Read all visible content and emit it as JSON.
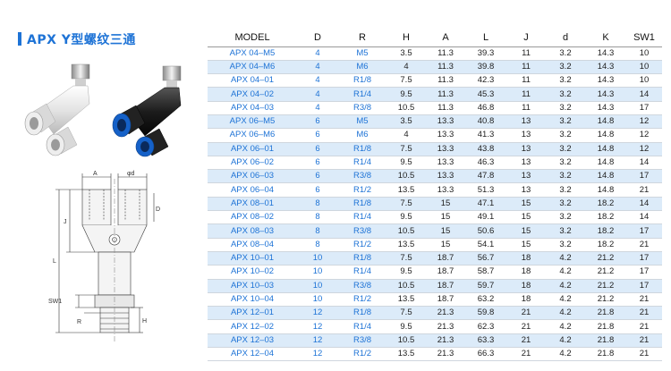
{
  "header": {
    "title": "APX Y型螺纹三通"
  },
  "images": {
    "photo_icon": "fitting-photo-icon",
    "drawing_icon": "dimension-drawing-icon",
    "drawing_labels": {
      "a": "A",
      "l": "L",
      "h": "H",
      "d": "φd",
      "j": "J",
      "sw": "SW1",
      "r": "R",
      "dd": "D"
    }
  },
  "colors": {
    "accent": "#1e73d6",
    "row_highlight": "#dcebf9",
    "fitting_white": "#e8e8e8",
    "fitting_black": "#1a1a1a",
    "collet_blue": "#1561c8"
  },
  "table": {
    "columns": [
      "MODEL",
      "D",
      "R",
      "H",
      "A",
      "L",
      "J",
      "d",
      "K",
      "SW1"
    ],
    "rows": [
      [
        "APX 04–M5",
        "4",
        "M5",
        "3.5",
        "11.3",
        "39.3",
        "11",
        "3.2",
        "14.3",
        "10"
      ],
      [
        "APX 04–M6",
        "4",
        "M6",
        "4",
        "11.3",
        "39.8",
        "11",
        "3.2",
        "14.3",
        "10"
      ],
      [
        "APX 04–01",
        "4",
        "R1/8",
        "7.5",
        "11.3",
        "42.3",
        "11",
        "3.2",
        "14.3",
        "10"
      ],
      [
        "APX 04–02",
        "4",
        "R1/4",
        "9.5",
        "11.3",
        "45.3",
        "11",
        "3.2",
        "14.3",
        "14"
      ],
      [
        "APX 04–03",
        "4",
        "R3/8",
        "10.5",
        "11.3",
        "46.8",
        "11",
        "3.2",
        "14.3",
        "17"
      ],
      [
        "APX 06–M5",
        "6",
        "M5",
        "3.5",
        "13.3",
        "40.8",
        "13",
        "3.2",
        "14.8",
        "12"
      ],
      [
        "APX 06–M6",
        "6",
        "M6",
        "4",
        "13.3",
        "41.3",
        "13",
        "3.2",
        "14.8",
        "12"
      ],
      [
        "APX 06–01",
        "6",
        "R1/8",
        "7.5",
        "13.3",
        "43.8",
        "13",
        "3.2",
        "14.8",
        "12"
      ],
      [
        "APX 06–02",
        "6",
        "R1/4",
        "9.5",
        "13.3",
        "46.3",
        "13",
        "3.2",
        "14.8",
        "14"
      ],
      [
        "APX 06–03",
        "6",
        "R3/8",
        "10.5",
        "13.3",
        "47.8",
        "13",
        "3.2",
        "14.8",
        "17"
      ],
      [
        "APX 06–04",
        "6",
        "R1/2",
        "13.5",
        "13.3",
        "51.3",
        "13",
        "3.2",
        "14.8",
        "21"
      ],
      [
        "APX 08–01",
        "8",
        "R1/8",
        "7.5",
        "15",
        "47.1",
        "15",
        "3.2",
        "18.2",
        "14"
      ],
      [
        "APX 08–02",
        "8",
        "R1/4",
        "9.5",
        "15",
        "49.1",
        "15",
        "3.2",
        "18.2",
        "14"
      ],
      [
        "APX 08–03",
        "8",
        "R3/8",
        "10.5",
        "15",
        "50.6",
        "15",
        "3.2",
        "18.2",
        "17"
      ],
      [
        "APX 08–04",
        "8",
        "R1/2",
        "13.5",
        "15",
        "54.1",
        "15",
        "3.2",
        "18.2",
        "21"
      ],
      [
        "APX 10–01",
        "10",
        "R1/8",
        "7.5",
        "18.7",
        "56.7",
        "18",
        "4.2",
        "21.2",
        "17"
      ],
      [
        "APX 10–02",
        "10",
        "R1/4",
        "9.5",
        "18.7",
        "58.7",
        "18",
        "4.2",
        "21.2",
        "17"
      ],
      [
        "APX 10–03",
        "10",
        "R3/8",
        "10.5",
        "18.7",
        "59.7",
        "18",
        "4.2",
        "21.2",
        "17"
      ],
      [
        "APX 10–04",
        "10",
        "R1/2",
        "13.5",
        "18.7",
        "63.2",
        "18",
        "4.2",
        "21.2",
        "21"
      ],
      [
        "APX 12–01",
        "12",
        "R1/8",
        "7.5",
        "21.3",
        "59.8",
        "21",
        "4.2",
        "21.8",
        "21"
      ],
      [
        "APX 12–02",
        "12",
        "R1/4",
        "9.5",
        "21.3",
        "62.3",
        "21",
        "4.2",
        "21.8",
        "21"
      ],
      [
        "APX 12–03",
        "12",
        "R3/8",
        "10.5",
        "21.3",
        "63.3",
        "21",
        "4.2",
        "21.8",
        "21"
      ],
      [
        "APX 12–04",
        "12",
        "R1/2",
        "13.5",
        "21.3",
        "66.3",
        "21",
        "4.2",
        "21.8",
        "21"
      ]
    ]
  }
}
